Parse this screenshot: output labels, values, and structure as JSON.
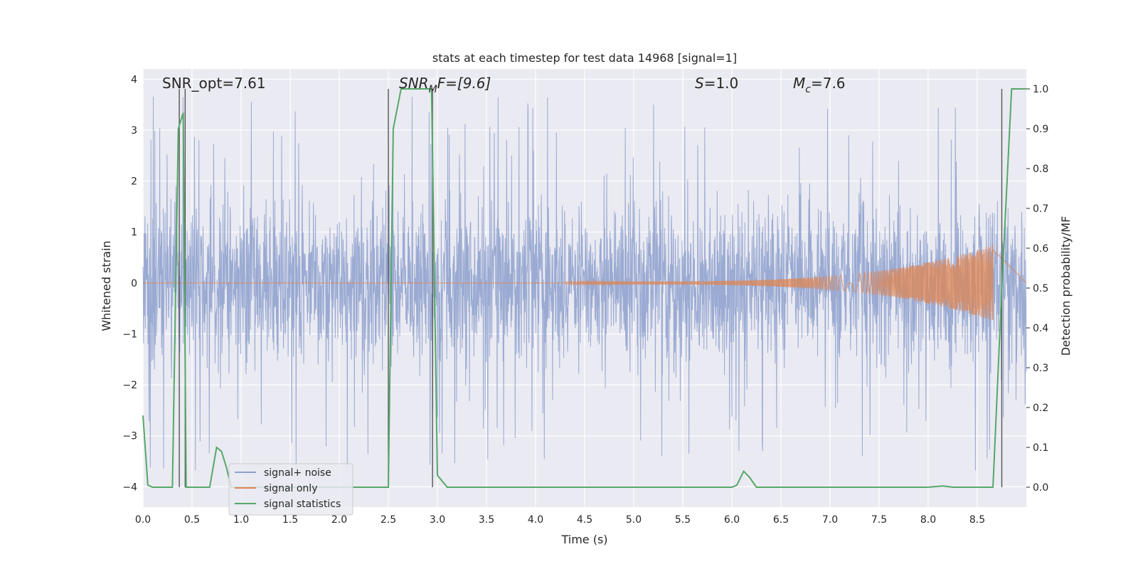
{
  "chart_data": {
    "type": "line",
    "title": "stats at each timestep for test data 14968 [signal=1]",
    "xlabel": "Time (s)",
    "ylabel_left": "Whitened strain",
    "ylabel_right": "Detection probability/MF",
    "xlim": [
      0,
      9.0
    ],
    "ylim_left": [
      -4.4,
      4.2
    ],
    "ylim_right": [
      -0.05,
      1.05
    ],
    "x_ticks": [
      0.0,
      0.5,
      1.0,
      1.5,
      2.0,
      2.5,
      3.0,
      3.5,
      4.0,
      4.5,
      5.0,
      5.5,
      6.0,
      6.5,
      7.0,
      7.5,
      8.0,
      8.5
    ],
    "x_tick_labels": [
      "0.0",
      "0.5",
      "1.0",
      "1.5",
      "2.0",
      "2.5",
      "3.0",
      "3.5",
      "4.0",
      "4.5",
      "5.0",
      "5.5",
      "6.0",
      "6.5",
      "7.0",
      "7.5",
      "8.0",
      "8.5"
    ],
    "y_left_ticks": [
      4,
      3,
      2,
      1,
      0,
      -1,
      -2,
      -3,
      -4
    ],
    "y_left_tick_labels": [
      "4",
      "3",
      "2",
      "1",
      "0",
      "−1",
      "−2",
      "−3",
      "−4"
    ],
    "y_right_ticks": [
      1.0,
      0.9,
      0.8,
      0.7,
      0.6,
      0.5,
      0.4,
      0.3,
      0.2,
      0.1,
      0.0
    ],
    "y_right_tick_labels": [
      "1.0",
      "0.9",
      "0.8",
      "0.7",
      "0.6",
      "0.5",
      "0.4",
      "0.3",
      "0.2",
      "0.1",
      "0.0"
    ],
    "grid": true,
    "legend_position": "lower-left",
    "annotations": {
      "snr_opt": "SNR_opt=7.61",
      "snr_mf_base": "SNR",
      "snr_mf_sub": "M",
      "snr_mf_rest": "F=[9.6]",
      "s_sym": "S",
      "s_val": "=1.0",
      "mc_sym": "M",
      "mc_sub": "c",
      "mc_val": "=7.6"
    },
    "vertical_lines_x": [
      0.37,
      0.43,
      2.5,
      2.95,
      8.75
    ],
    "series": [
      {
        "name": "signal+ noise",
        "color": "#8c9fcd",
        "axis": "left",
        "description_envelope": {
          "typical_amplitude": 1.6,
          "peak_amplitude": 3.7
        }
      },
      {
        "name": "signal only",
        "color": "#dd8452",
        "axis": "left",
        "chirp": {
          "start": 4.3,
          "end": 8.66,
          "amplitude_start": 0.03,
          "amplitude_peak": 0.75
        }
      },
      {
        "name": "signal statistics",
        "color": "#55a868",
        "axis": "right",
        "x": [
          0.0,
          0.05,
          0.1,
          0.2,
          0.3,
          0.36,
          0.41,
          0.44,
          0.47,
          0.5,
          0.6,
          0.68,
          0.75,
          0.8,
          0.85,
          0.9,
          1.0,
          1.5,
          2.0,
          2.5,
          2.55,
          2.63,
          2.7,
          2.8,
          2.94,
          3.0,
          3.1,
          3.5,
          4.0,
          5.0,
          6.0,
          6.05,
          6.12,
          6.18,
          6.25,
          6.5,
          7.0,
          8.0,
          8.15,
          8.25,
          8.66,
          8.75,
          8.85,
          9.0
        ],
        "y": [
          0.18,
          0.005,
          0.0,
          0.0,
          0.0,
          0.9,
          0.94,
          0.0,
          0.0,
          0.0,
          0.0,
          0.0,
          0.1,
          0.09,
          0.05,
          0.0,
          0.0,
          0.0,
          0.0,
          0.0,
          0.9,
          1.0,
          1.0,
          1.0,
          1.0,
          0.03,
          0.0,
          0.0,
          0.0,
          0.0,
          0.0,
          0.005,
          0.04,
          0.025,
          0.0,
          0.0,
          0.0,
          0.0,
          0.003,
          0.0,
          0.0,
          0.5,
          1.0,
          1.0
        ]
      }
    ]
  }
}
